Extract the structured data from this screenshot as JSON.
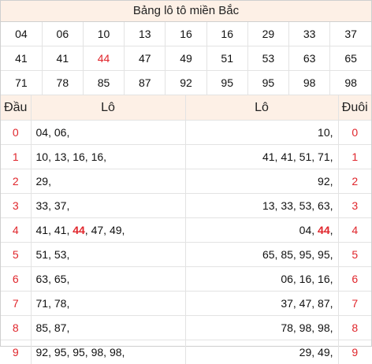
{
  "title": "Bảng lô tô miền Bắc",
  "highlight": "44",
  "numbers": [
    [
      "04",
      "06",
      "10",
      "13",
      "16",
      "16",
      "29",
      "33",
      "37"
    ],
    [
      "41",
      "41",
      "44",
      "47",
      "49",
      "51",
      "53",
      "63",
      "65"
    ],
    [
      "71",
      "78",
      "85",
      "87",
      "92",
      "95",
      "95",
      "98",
      "98"
    ]
  ],
  "headers": {
    "dau": "Đầu",
    "lo_left": "Lô",
    "lo_right": "Lô",
    "duoi": "Đuôi"
  },
  "rows": [
    {
      "dau": "0",
      "left": [
        "04",
        "06"
      ],
      "right": [
        "10"
      ],
      "duoi": "0"
    },
    {
      "dau": "1",
      "left": [
        "10",
        "13",
        "16",
        "16"
      ],
      "right": [
        "41",
        "41",
        "51",
        "71"
      ],
      "duoi": "1"
    },
    {
      "dau": "2",
      "left": [
        "29"
      ],
      "right": [
        "92"
      ],
      "duoi": "2"
    },
    {
      "dau": "3",
      "left": [
        "33",
        "37"
      ],
      "right": [
        "13",
        "33",
        "53",
        "63"
      ],
      "duoi": "3"
    },
    {
      "dau": "4",
      "left": [
        "41",
        "41",
        "44",
        "47",
        "49"
      ],
      "right": [
        "04",
        "44"
      ],
      "duoi": "4"
    },
    {
      "dau": "5",
      "left": [
        "51",
        "53"
      ],
      "right": [
        "65",
        "85",
        "95",
        "95"
      ],
      "duoi": "5"
    },
    {
      "dau": "6",
      "left": [
        "63",
        "65"
      ],
      "right": [
        "06",
        "16",
        "16"
      ],
      "duoi": "6"
    },
    {
      "dau": "7",
      "left": [
        "71",
        "78"
      ],
      "right": [
        "37",
        "47",
        "87"
      ],
      "duoi": "7"
    },
    {
      "dau": "8",
      "left": [
        "85",
        "87"
      ],
      "right": [
        "78",
        "98",
        "98"
      ],
      "duoi": "8"
    },
    {
      "dau": "9",
      "left": [
        "92",
        "95",
        "95",
        "98",
        "98"
      ],
      "right": [
        "29",
        "49"
      ],
      "duoi": "9"
    }
  ],
  "colors": {
    "accent_red": "#e0252b",
    "header_bg": "#fdf0e6",
    "border": "#e3e3e3"
  }
}
